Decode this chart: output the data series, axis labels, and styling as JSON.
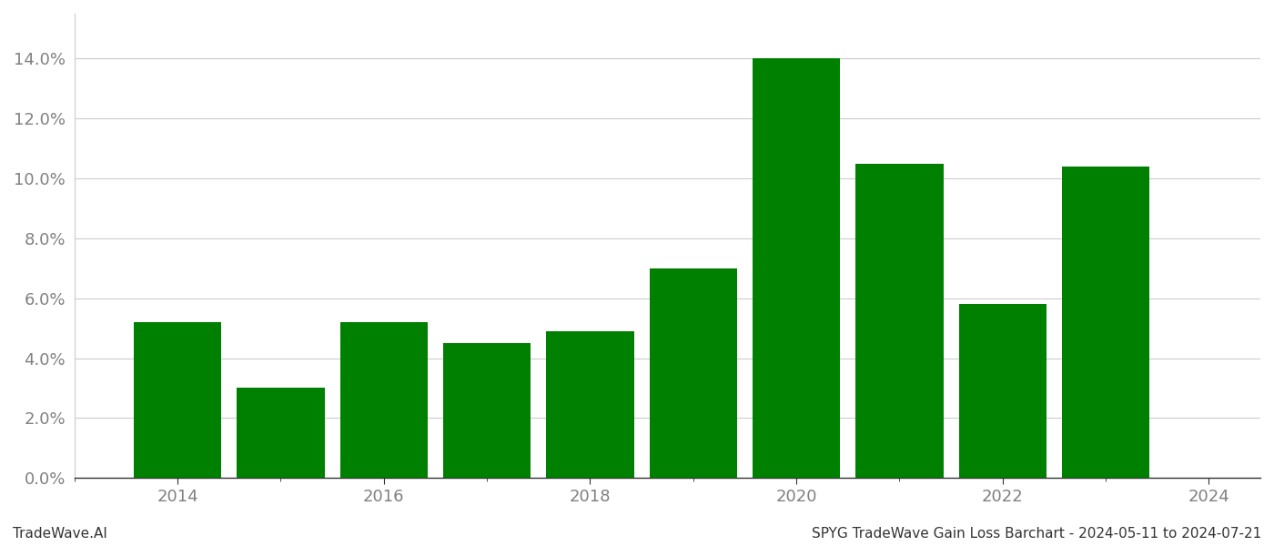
{
  "years": [
    2014,
    2015,
    2016,
    2017,
    2018,
    2019,
    2020,
    2021,
    2022,
    2023
  ],
  "values": [
    0.052,
    0.03,
    0.052,
    0.045,
    0.049,
    0.07,
    0.14,
    0.105,
    0.058,
    0.104
  ],
  "bar_color": "#008000",
  "background_color": "#ffffff",
  "grid_color": "#cccccc",
  "ytick_color": "#808080",
  "xtick_color": "#808080",
  "xtick_labels": [
    2014,
    2016,
    2018,
    2020,
    2022,
    2024
  ],
  "ylim": [
    0.0,
    0.155
  ],
  "yticks": [
    0.0,
    0.02,
    0.04,
    0.06,
    0.08,
    0.1,
    0.12,
    0.14
  ],
  "footer_left": "TradeWave.AI",
  "footer_right": "SPYG TradeWave Gain Loss Barchart - 2024-05-11 to 2024-07-21",
  "bar_width": 0.85,
  "figsize": [
    14.0,
    6.0
  ],
  "dpi": 100,
  "bottom_spine_color": "#333333",
  "tick_label_fontsize": 13,
  "footer_fontsize": 11,
  "xlim_left": 2013.0,
  "xlim_right": 2024.5
}
